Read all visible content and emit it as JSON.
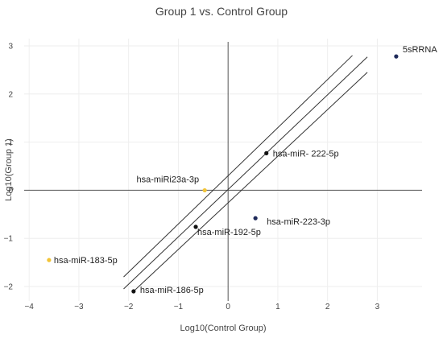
{
  "chart_data": {
    "type": "scatter",
    "title": "Group 1 vs. Control Group",
    "xlabel": "Log10(Control Group)",
    "ylabel": "Log10(Group 1)",
    "xlim": [
      -4.1,
      3.9
    ],
    "ylim": [
      -2.3,
      3.15
    ],
    "xticks": [
      -4,
      -3,
      -2,
      -1,
      0,
      1,
      2,
      3
    ],
    "yticks": [
      -2,
      -1,
      0,
      1,
      2,
      3
    ],
    "grid": true,
    "reference_lines": [
      {
        "x": [
          -2.1,
          2.5
        ],
        "y": [
          -1.8,
          2.8
        ]
      },
      {
        "x": [
          -2.1,
          2.8
        ],
        "y": [
          -2.05,
          2.77
        ]
      },
      {
        "x": [
          -1.9,
          2.8
        ],
        "y": [
          -2.1,
          2.45
        ]
      }
    ],
    "points": [
      {
        "label": "5sRRNA",
        "x": 3.38,
        "y": 2.78,
        "color": "#1f2a5a"
      },
      {
        "label": "hsa-miR- 222-5p",
        "x": 0.77,
        "y": 0.77,
        "color": "#111111"
      },
      {
        "label": "hsa-miRi23a-3p",
        "x": -0.47,
        "y": 0.0,
        "color": "#f2c437"
      },
      {
        "label": "hsa-miR-223-3p",
        "x": 0.55,
        "y": -0.58,
        "color": "#1f2a5a"
      },
      {
        "label": "hsa-miR-192-5p",
        "x": -0.65,
        "y": -0.76,
        "color": "#111111"
      },
      {
        "label": "hsa-miR-183-5p",
        "x": -3.6,
        "y": -1.45,
        "color": "#f2c437"
      },
      {
        "label": "hsa-miR-186-5p",
        "x": -1.9,
        "y": -2.1,
        "color": "#111111"
      }
    ]
  }
}
